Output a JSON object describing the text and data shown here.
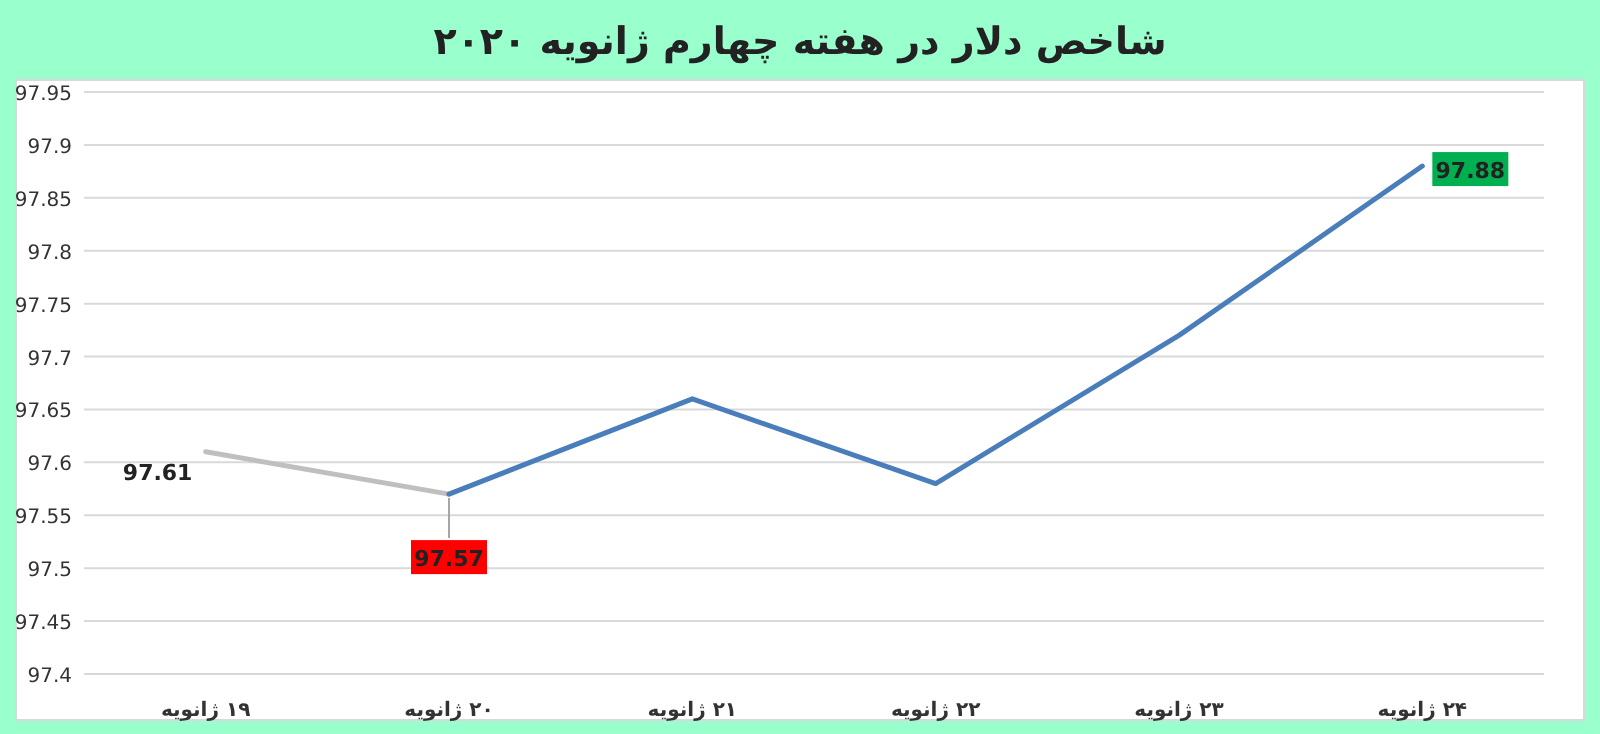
{
  "chart_data": {
    "type": "line",
    "title": "شاخص دلار در هفته چهارم ژانویه ۲۰۲۰",
    "categories": [
      "۱۹ ژانویه",
      "۲۰ ژانویه",
      "۲۱ ژانویه",
      "۲۲ ژانویه",
      "۲۳ ژانویه",
      "۲۴ ژانویه"
    ],
    "series": [
      {
        "color": "#bfbfbf",
        "values": [
          97.61,
          97.57,
          null,
          null,
          null,
          null
        ],
        "value_labels": [
          "97.61",
          null,
          null,
          null,
          null,
          null
        ]
      },
      {
        "color": "#4a7ebb",
        "values": [
          null,
          97.57,
          97.66,
          97.58,
          97.72,
          97.88
        ],
        "value_labels": [
          null,
          "97.57",
          null,
          null,
          null,
          "97.88"
        ]
      }
    ],
    "ylim": [
      97.4,
      97.95
    ],
    "yticks": [
      97.4,
      97.45,
      97.5,
      97.55,
      97.6,
      97.65,
      97.7,
      97.75,
      97.8,
      97.85,
      97.9,
      97.95
    ],
    "grid": "y",
    "marker": "none",
    "line_style": "solid"
  }
}
